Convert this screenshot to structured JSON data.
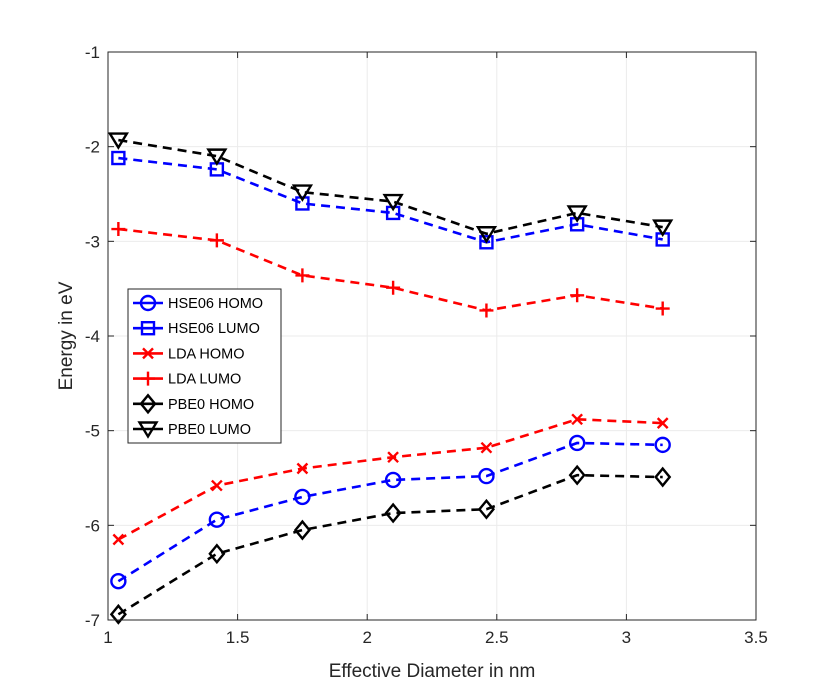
{
  "chart_data": {
    "type": "line",
    "xlabel": "Effective Diameter in nm",
    "ylabel": "Energy in eV",
    "xlim": [
      1,
      3.5
    ],
    "ylim": [
      -7,
      -1
    ],
    "xticks": [
      "1",
      "1.5",
      "2",
      "2.5",
      "3",
      "3.5"
    ],
    "yticks": [
      "-1",
      "-2",
      "-3",
      "-4",
      "-5",
      "-6",
      "-7"
    ],
    "grid": true,
    "legend_position": "middle-left",
    "x": [
      1.04,
      1.42,
      1.75,
      2.1,
      2.46,
      2.81,
      3.14
    ],
    "series": [
      {
        "name": "HSE06 HOMO",
        "color": "#0000ff",
        "marker": "circle",
        "values": [
          -6.59,
          -5.94,
          -5.7,
          -5.52,
          -5.48,
          -5.13,
          -5.15
        ]
      },
      {
        "name": "HSE06 LUMO",
        "color": "#0000ff",
        "marker": "square",
        "values": [
          -2.12,
          -2.24,
          -2.6,
          -2.7,
          -3.01,
          -2.82,
          -2.98
        ]
      },
      {
        "name": "LDA HOMO",
        "color": "#ff0000",
        "marker": "x",
        "values": [
          -6.15,
          -5.58,
          -5.4,
          -5.28,
          -5.18,
          -4.88,
          -4.92
        ]
      },
      {
        "name": "LDA LUMO",
        "color": "#ff0000",
        "marker": "plus",
        "values": [
          -2.87,
          -2.99,
          -3.36,
          -3.49,
          -3.73,
          -3.57,
          -3.71
        ]
      },
      {
        "name": "PBE0 HOMO",
        "color": "#000000",
        "marker": "diamond",
        "values": [
          -6.94,
          -6.3,
          -6.05,
          -5.87,
          -5.83,
          -5.47,
          -5.49
        ]
      },
      {
        "name": "PBE0 LUMO",
        "color": "#000000",
        "marker": "triangle-down",
        "values": [
          -1.93,
          -2.1,
          -2.48,
          -2.58,
          -2.92,
          -2.7,
          -2.85
        ]
      }
    ]
  }
}
